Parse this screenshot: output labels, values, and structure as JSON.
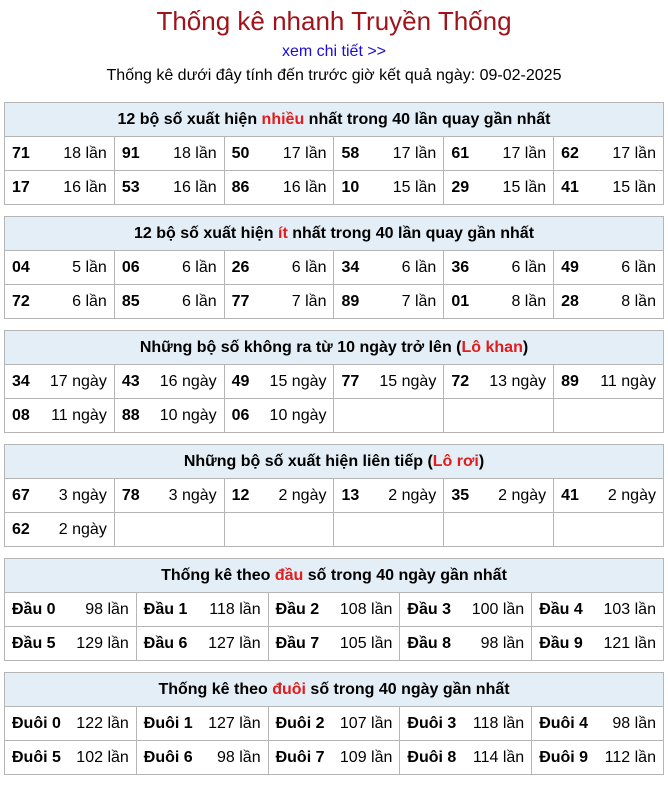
{
  "header": {
    "title": "Thống kê nhanh Truyền Thống",
    "link": "xem chi tiết >>",
    "subtitle": "Thống kê dưới đây tính đến trước giờ kết quả ngày: 09-02-2025"
  },
  "sections": [
    {
      "title_pre": "12 bộ số xuất hiện ",
      "title_red": "nhiều",
      "title_post": " nhất trong 40 lần quay gần nhất",
      "rows": [
        [
          [
            "71",
            "18 lần"
          ],
          [
            "91",
            "18 lần"
          ],
          [
            "50",
            "17 lần"
          ],
          [
            "58",
            "17 lần"
          ],
          [
            "61",
            "17 lần"
          ],
          [
            "62",
            "17 lần"
          ]
        ],
        [
          [
            "17",
            "16 lần"
          ],
          [
            "53",
            "16 lần"
          ],
          [
            "86",
            "16 lần"
          ],
          [
            "10",
            "15 lần"
          ],
          [
            "29",
            "15 lần"
          ],
          [
            "41",
            "15 lần"
          ]
        ]
      ]
    },
    {
      "title_pre": "12 bộ số xuất hiện ",
      "title_red": "ít",
      "title_post": " nhất trong 40 lần quay gần nhất",
      "rows": [
        [
          [
            "04",
            "5 lần"
          ],
          [
            "06",
            "6 lần"
          ],
          [
            "26",
            "6 lần"
          ],
          [
            "34",
            "6 lần"
          ],
          [
            "36",
            "6 lần"
          ],
          [
            "49",
            "6 lần"
          ]
        ],
        [
          [
            "72",
            "6 lần"
          ],
          [
            "85",
            "6 lần"
          ],
          [
            "77",
            "7 lần"
          ],
          [
            "89",
            "7 lần"
          ],
          [
            "01",
            "8 lần"
          ],
          [
            "28",
            "8 lần"
          ]
        ]
      ]
    },
    {
      "title_pre": "Những bộ số không ra từ 10 ngày trở lên (",
      "title_red": "Lô khan",
      "title_post": ")",
      "rows": [
        [
          [
            "34",
            "17 ngày"
          ],
          [
            "43",
            "16 ngày"
          ],
          [
            "49",
            "15 ngày"
          ],
          [
            "77",
            "15 ngày"
          ],
          [
            "72",
            "13 ngày"
          ],
          [
            "89",
            "11 ngày"
          ]
        ],
        [
          [
            "08",
            "11 ngày"
          ],
          [
            "88",
            "10 ngày"
          ],
          [
            "06",
            "10 ngày"
          ],
          [
            "",
            ""
          ],
          [
            "",
            ""
          ],
          [
            "",
            ""
          ]
        ]
      ]
    },
    {
      "title_pre": "Những bộ số xuất hiện liên tiếp (",
      "title_red": "Lô rơi",
      "title_post": ")",
      "rows": [
        [
          [
            "67",
            "3 ngày"
          ],
          [
            "78",
            "3 ngày"
          ],
          [
            "12",
            "2 ngày"
          ],
          [
            "13",
            "2 ngày"
          ],
          [
            "35",
            "2 ngày"
          ],
          [
            "41",
            "2 ngày"
          ]
        ],
        [
          [
            "62",
            "2 ngày"
          ],
          [
            "",
            ""
          ],
          [
            "",
            ""
          ],
          [
            "",
            ""
          ],
          [
            "",
            ""
          ],
          [
            "",
            ""
          ]
        ]
      ]
    },
    {
      "title_pre": "Thống kê theo ",
      "title_red": "đầu",
      "title_post": " số trong 40 ngày gần nhất",
      "rows": [
        [
          [
            "Đầu 0",
            "98 lần"
          ],
          [
            "Đầu 1",
            "118 lần"
          ],
          [
            "Đầu 2",
            "108 lần"
          ],
          [
            "Đầu 3",
            "100 lần"
          ],
          [
            "Đầu 4",
            "103 lần"
          ]
        ],
        [
          [
            "Đầu 5",
            "129 lần"
          ],
          [
            "Đầu 6",
            "127 lần"
          ],
          [
            "Đầu 7",
            "105 lần"
          ],
          [
            "Đầu 8",
            "98 lần"
          ],
          [
            "Đầu 9",
            "121 lần"
          ]
        ]
      ]
    },
    {
      "title_pre": "Thống kê theo ",
      "title_red": "đuôi",
      "title_post": " số trong 40 ngày gần nhất",
      "rows": [
        [
          [
            "Đuôi 0",
            "122 lần"
          ],
          [
            "Đuôi 1",
            "127 lần"
          ],
          [
            "Đuôi 2",
            "107 lần"
          ],
          [
            "Đuôi 3",
            "118 lần"
          ],
          [
            "Đuôi 4",
            "98 lần"
          ]
        ],
        [
          [
            "Đuôi 5",
            "102 lần"
          ],
          [
            "Đuôi 6",
            "98 lần"
          ],
          [
            "Đuôi 7",
            "109 lần"
          ],
          [
            "Đuôi 8",
            "114 lần"
          ],
          [
            "Đuôi 9",
            "112 lần"
          ]
        ]
      ]
    }
  ],
  "colors": {
    "title": "#a0131b",
    "link": "#1a0dd6",
    "highlight": "#e21b1b",
    "section_header_bg": "#e3eef6",
    "border": "#b5b5b5"
  }
}
